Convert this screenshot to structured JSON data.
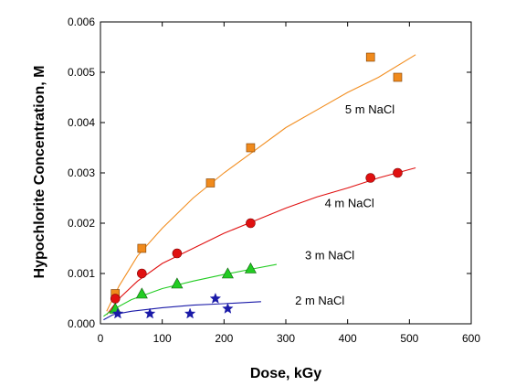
{
  "chart_data": {
    "type": "scatter",
    "title": "",
    "xlabel": "Dose, kGy",
    "ylabel": "Hypochlorite Concentration, M",
    "xlim": [
      0,
      600
    ],
    "ylim": [
      0,
      0.006
    ],
    "xticks": [
      "0",
      "100",
      "200",
      "300",
      "400",
      "500",
      "600"
    ],
    "yticks": [
      "0.000",
      "0.001",
      "0.002",
      "0.003",
      "0.004",
      "0.005",
      "0.006"
    ],
    "grid": false,
    "legend": "none",
    "series": [
      {
        "name": "5 m NaCl",
        "marker": "square",
        "color": "#f08a1c",
        "line_color": "#f28e20",
        "x": [
          24,
          67,
          178,
          243,
          437,
          481
        ],
        "y": [
          0.0006,
          0.0015,
          0.0028,
          0.0035,
          0.0053,
          0.0049
        ],
        "fit": {
          "x": [
            10,
            30,
            60,
            100,
            150,
            200,
            250,
            300,
            350,
            400,
            450,
            510
          ],
          "y": [
            0.00025,
            0.00075,
            0.00135,
            0.0019,
            0.0025,
            0.003,
            0.00345,
            0.0039,
            0.00425,
            0.0046,
            0.0049,
            0.00535
          ]
        }
      },
      {
        "name": "4 m NaCl",
        "marker": "circle",
        "color": "#e01010",
        "line_color": "#e01010",
        "x": [
          24,
          67,
          124,
          243,
          437,
          481
        ],
        "y": [
          0.0005,
          0.001,
          0.0014,
          0.002,
          0.0029,
          0.003
        ],
        "fit": {
          "x": [
            10,
            30,
            60,
            100,
            150,
            200,
            250,
            300,
            350,
            400,
            450,
            510
          ],
          "y": [
            0.00018,
            0.0005,
            0.00085,
            0.0012,
            0.0015,
            0.0018,
            0.00205,
            0.0023,
            0.00252,
            0.0027,
            0.0029,
            0.0031
          ]
        }
      },
      {
        "name": "3 m NaCl",
        "marker": "triangle",
        "color": "#22cc22",
        "line_color": "#22cc22",
        "x": [
          24,
          67,
          124,
          206,
          243
        ],
        "y": [
          0.0003,
          0.0006,
          0.0008,
          0.001,
          0.0011
        ],
        "fit": {
          "x": [
            5,
            20,
            50,
            100,
            150,
            200,
            250,
            285
          ],
          "y": [
            0.00015,
            0.00028,
            0.00048,
            0.0007,
            0.00085,
            0.00098,
            0.0011,
            0.00118
          ]
        }
      },
      {
        "name": "2 m NaCl",
        "marker": "star",
        "color": "#1a1aa8",
        "line_color": "#1a1aa8",
        "x": [
          28,
          80,
          145,
          186,
          206
        ],
        "y": [
          0.0002,
          0.0002,
          0.0002,
          0.0005,
          0.0003
        ],
        "fit": {
          "x": [
            5,
            20,
            50,
            100,
            150,
            200,
            260
          ],
          "y": [
            8e-05,
            0.00018,
            0.00025,
            0.00032,
            0.00037,
            0.0004,
            0.00044
          ]
        }
      }
    ],
    "annotations": [
      {
        "text": "5 m NaCl",
        "x": 436,
        "y": 0.00418
      },
      {
        "text": "4 m NaCl",
        "x": 403,
        "y": 0.00232
      },
      {
        "text": "3 m NaCl",
        "x": 371,
        "y": 0.00128
      },
      {
        "text": "2 m NaCl",
        "x": 355,
        "y": 0.00038
      }
    ]
  }
}
